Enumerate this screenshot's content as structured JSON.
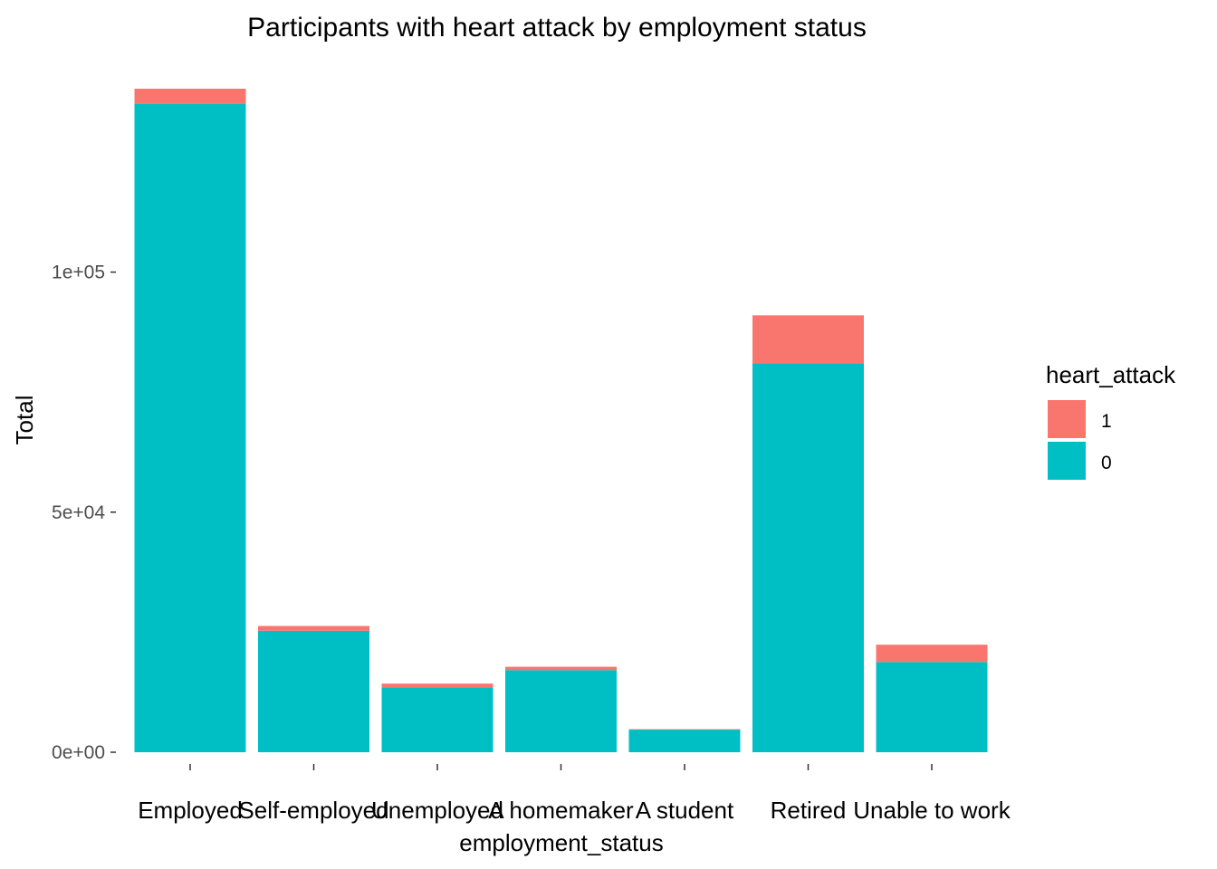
{
  "chart_data": {
    "type": "bar",
    "stacked": true,
    "title": "Participants with heart attack by employment status",
    "xlabel": "employment_status",
    "ylabel": "Total",
    "categories": [
      "Employed",
      "Self-employed",
      "Unemployed",
      "A homemaker",
      "A student",
      "Retired",
      "Unable to work"
    ],
    "series": [
      {
        "name": "0",
        "color": "#00BFC4",
        "values": [
          135000,
          25300,
          13500,
          17100,
          4700,
          81000,
          18800
        ]
      },
      {
        "name": "1",
        "color": "#F8766D",
        "values": [
          3200,
          1000,
          800,
          700,
          100,
          10000,
          3600
        ]
      }
    ],
    "yticks": [
      {
        "value": 0,
        "label": "0e+00"
      },
      {
        "value": 50000,
        "label": "5e+04"
      },
      {
        "value": 100000,
        "label": "1e+05"
      }
    ],
    "ylim": [
      0,
      138200
    ],
    "grid": false,
    "legend": {
      "title": "heart_attack",
      "position": "right",
      "entries": [
        {
          "label": "1",
          "color": "#F8766D"
        },
        {
          "label": "0",
          "color": "#00BFC4"
        }
      ]
    }
  }
}
